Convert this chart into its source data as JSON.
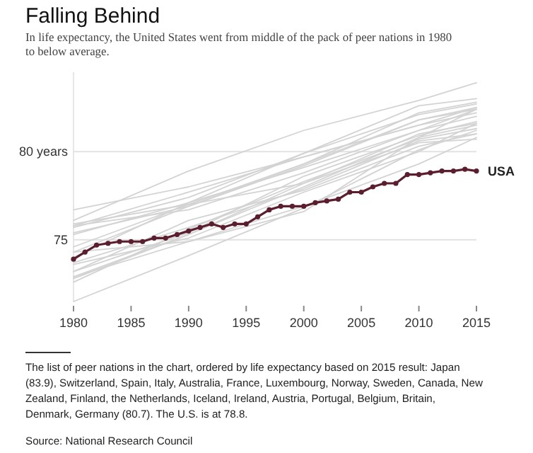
{
  "chart_data": {
    "type": "line",
    "title": "Falling Behind",
    "subtitle": "In life expectancy, the United States went from middle of the pack of peer nations in 1980 to below average.",
    "x": [
      1980,
      1981,
      1982,
      1983,
      1984,
      1985,
      1986,
      1987,
      1988,
      1989,
      1990,
      1991,
      1992,
      1993,
      1994,
      1995,
      1996,
      1997,
      1998,
      1999,
      2000,
      2001,
      2002,
      2003,
      2004,
      2005,
      2006,
      2007,
      2008,
      2009,
      2010,
      2011,
      2012,
      2013,
      2014,
      2015
    ],
    "xlim": [
      1980,
      2015
    ],
    "xticks": [
      1980,
      1985,
      1990,
      1995,
      2000,
      2005,
      2010,
      2015
    ],
    "ylim": [
      71.5,
      84.5
    ],
    "yticks": [
      75,
      {
        "value": 80,
        "label": "80 years"
      }
    ],
    "grid": "y",
    "series": [
      {
        "color": "#d3d3d3",
        "marker": "none",
        "x": [
          1980,
          1990,
          2000,
          2010,
          2015
        ],
        "values": [
          76.1,
          78.9,
          81.2,
          82.9,
          83.9
        ]
      },
      {
        "color": "#d3d3d3",
        "marker": "none",
        "x": [
          1980,
          1990,
          2000,
          2010,
          2015
        ],
        "values": [
          75.7,
          77.4,
          79.9,
          82.6,
          83.0
        ]
      },
      {
        "color": "#d3d3d3",
        "marker": "none",
        "x": [
          1980,
          1990,
          2000,
          2010,
          2015
        ],
        "values": [
          75.4,
          76.9,
          79.3,
          82.2,
          82.8
        ]
      },
      {
        "color": "#d3d3d3",
        "marker": "none",
        "x": [
          1980,
          1990,
          2000,
          2010,
          2015
        ],
        "values": [
          74.0,
          77.1,
          79.9,
          82.1,
          82.7
        ]
      },
      {
        "color": "#d3d3d3",
        "marker": "none",
        "x": [
          1980,
          1990,
          2000,
          2010,
          2015
        ],
        "values": [
          74.6,
          77.0,
          79.3,
          81.8,
          82.5
        ]
      },
      {
        "color": "#d3d3d3",
        "marker": "none",
        "x": [
          1980,
          1990,
          2000,
          2010,
          2015
        ],
        "values": [
          74.3,
          76.9,
          79.2,
          81.8,
          82.4
        ]
      },
      {
        "color": "#d3d3d3",
        "marker": "none",
        "x": [
          1980,
          1990,
          2000,
          2010,
          2015
        ],
        "values": [
          72.8,
          75.3,
          78.0,
          80.8,
          82.4
        ]
      },
      {
        "color": "#d3d3d3",
        "marker": "none",
        "x": [
          1980,
          1990,
          2000,
          2010,
          2015
        ],
        "values": [
          75.8,
          76.7,
          78.8,
          81.2,
          82.4
        ]
      },
      {
        "color": "#d3d3d3",
        "marker": "none",
        "x": [
          1980,
          1990,
          2000,
          2010,
          2015
        ],
        "values": [
          75.8,
          77.7,
          79.7,
          81.5,
          82.2
        ]
      },
      {
        "color": "#d3d3d3",
        "marker": "none",
        "x": [
          1980,
          1990,
          2000,
          2010,
          2015
        ],
        "values": [
          75.3,
          77.1,
          79.1,
          81.2,
          82.0
        ]
      },
      {
        "color": "#d3d3d3",
        "marker": "none",
        "x": [
          1980,
          1990,
          2000,
          2010,
          2015
        ],
        "values": [
          73.2,
          75.4,
          78.6,
          80.9,
          81.7
        ]
      },
      {
        "color": "#d3d3d3",
        "marker": "none",
        "x": [
          1980,
          1990,
          2000,
          2010,
          2015
        ],
        "values": [
          73.6,
          75.1,
          77.7,
          80.0,
          81.6
        ]
      },
      {
        "color": "#d3d3d3",
        "marker": "none",
        "x": [
          1980,
          1990,
          2000,
          2010,
          2015
        ],
        "values": [
          75.9,
          77.0,
          78.2,
          81.0,
          81.6
        ]
      },
      {
        "color": "#d3d3d3",
        "marker": "none",
        "x": [
          1980,
          1990,
          2000,
          2010,
          2015
        ],
        "values": [
          76.7,
          78.0,
          79.7,
          81.5,
          82.5
        ]
      },
      {
        "color": "#d3d3d3",
        "marker": "none",
        "x": [
          1980,
          1990,
          2000,
          2010,
          2015
        ],
        "values": [
          72.9,
          74.9,
          76.6,
          80.8,
          81.5
        ]
      },
      {
        "color": "#d3d3d3",
        "marker": "none",
        "x": [
          1980,
          1990,
          2000,
          2010,
          2015
        ],
        "values": [
          72.6,
          75.6,
          78.3,
          80.7,
          81.3
        ]
      },
      {
        "color": "#d3d3d3",
        "marker": "none",
        "x": [
          1980,
          1990,
          2000,
          2010,
          2015
        ],
        "values": [
          71.5,
          74.1,
          76.8,
          80.1,
          81.2
        ]
      },
      {
        "color": "#d3d3d3",
        "marker": "none",
        "x": [
          1980,
          1990,
          2000,
          2010,
          2015
        ],
        "values": [
          73.2,
          76.1,
          77.8,
          80.3,
          81.0
        ]
      },
      {
        "color": "#d3d3d3",
        "marker": "none",
        "x": [
          1980,
          1990,
          2000,
          2010,
          2015
        ],
        "values": [
          73.7,
          75.7,
          77.9,
          80.6,
          81.0
        ]
      },
      {
        "color": "#d3d3d3",
        "marker": "none",
        "x": [
          1980,
          1990,
          2000,
          2010,
          2015
        ],
        "values": [
          74.3,
          74.9,
          76.9,
          79.3,
          80.8
        ]
      },
      {
        "color": "#d3d3d3",
        "marker": "none",
        "x": [
          1980,
          1990,
          2000,
          2010,
          2015
        ],
        "values": [
          72.9,
          75.3,
          78.2,
          80.5,
          80.7
        ]
      },
      {
        "name": "USA",
        "color": "#5a1e2e",
        "marker": "circle",
        "values": [
          73.9,
          74.3,
          74.7,
          74.8,
          74.9,
          74.9,
          74.9,
          75.1,
          75.1,
          75.3,
          75.5,
          75.7,
          75.9,
          75.7,
          75.9,
          75.9,
          76.3,
          76.7,
          76.9,
          76.9,
          76.9,
          77.1,
          77.2,
          77.3,
          77.7,
          77.7,
          78.0,
          78.2,
          78.2,
          78.7,
          78.7,
          78.8,
          78.9,
          78.9,
          79.0,
          78.9
        ]
      }
    ],
    "annotations": [
      "The list of peer nations in the chart, ordered by life expectancy based on 2015 result: Japan (83.9), Switzerland, Spain, Italy, Australia, France, Luxembourg, Norway, Sweden, Canada, New Zealand, Finland, the Netherlands, Iceland, Ireland, Austria, Portugal, Belgium, Britain, Denmark, Germany (80.7). The U.S. is at 78.8.",
      "Source: National Research Council"
    ]
  }
}
